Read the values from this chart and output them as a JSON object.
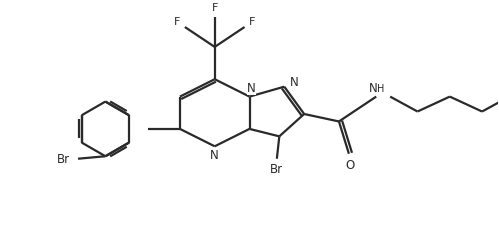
{
  "bg_color": "#ffffff",
  "line_color": "#2a2a2a",
  "line_width": 1.6,
  "figsize": [
    4.99,
    2.3
  ],
  "dpi": 100,
  "xlim": [
    0,
    10
  ],
  "ylim": [
    0,
    10
  ]
}
